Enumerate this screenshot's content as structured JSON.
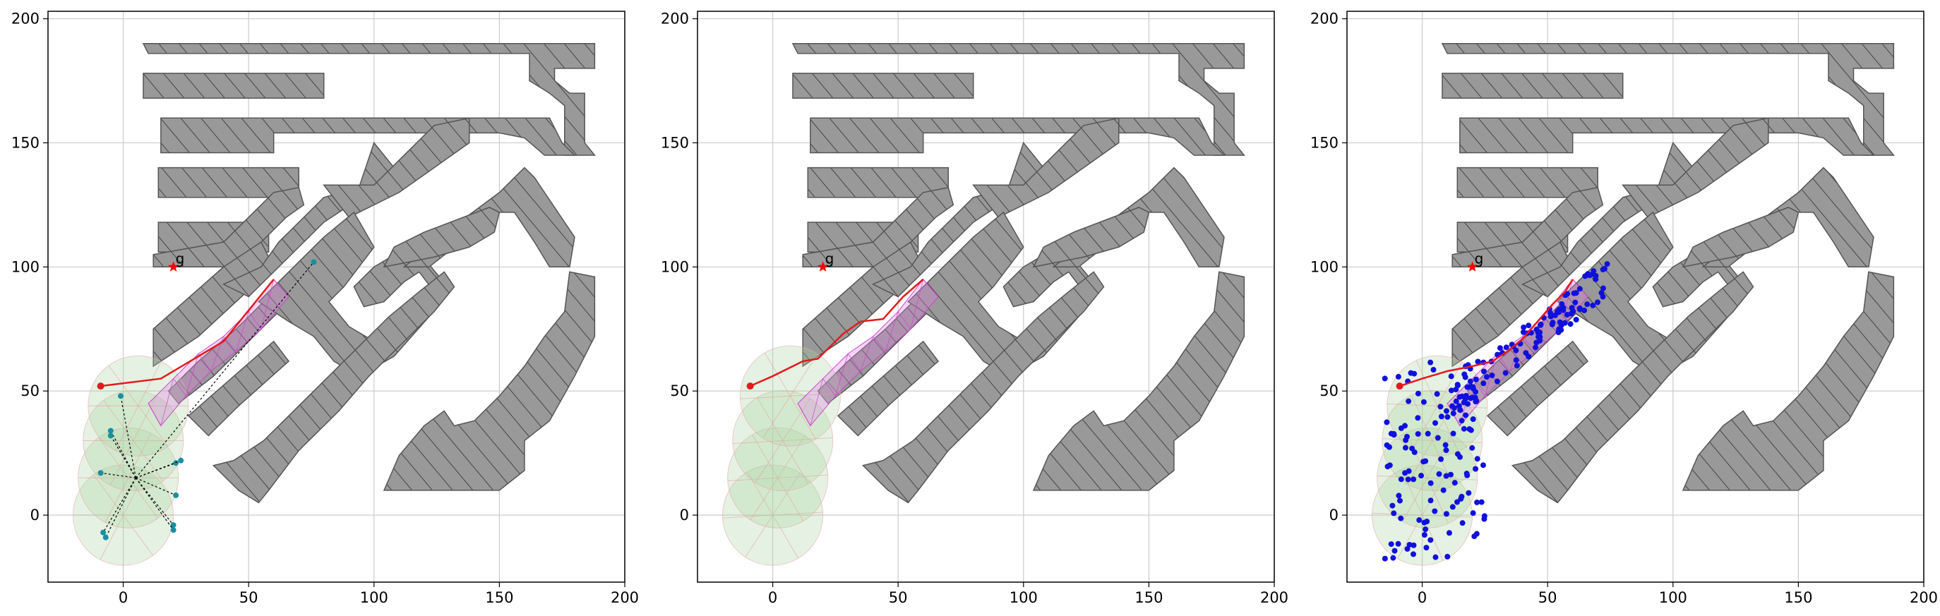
{
  "chart_data": [
    {
      "type": "scatter",
      "panel": "left",
      "xlim": [
        -30,
        200
      ],
      "ylim": [
        -27,
        203
      ],
      "xticks": [
        "0",
        "50",
        "100",
        "150",
        "200"
      ],
      "yticks": [
        "0",
        "50",
        "100",
        "150",
        "200"
      ],
      "grid": true,
      "goal": {
        "label": "g",
        "x": 20,
        "y": 100
      },
      "start": {
        "x": -9,
        "y": 52
      },
      "path": [
        [
          -9,
          52
        ],
        [
          15,
          55
        ],
        [
          40,
          70
        ],
        [
          60,
          95
        ]
      ],
      "waypoint_samples": [
        [
          -1,
          48
        ],
        [
          -5,
          34
        ],
        [
          -5,
          32
        ],
        [
          -9,
          17
        ],
        [
          21,
          21
        ],
        [
          23,
          22
        ],
        [
          21,
          8
        ],
        [
          20,
          -4
        ],
        [
          20,
          -6
        ],
        [
          -8,
          -7
        ],
        [
          -7,
          -9
        ],
        [
          76,
          102
        ]
      ],
      "circle_centers": [
        [
          0,
          0
        ],
        [
          2,
          15
        ],
        [
          4,
          30
        ],
        [
          6,
          44
        ]
      ],
      "circle_radius": 20
    },
    {
      "type": "scatter",
      "panel": "middle",
      "xlim": [
        -30,
        200
      ],
      "ylim": [
        -27,
        203
      ],
      "xticks": [
        "0",
        "50",
        "100",
        "150",
        "200"
      ],
      "yticks": [
        "0",
        "50",
        "100",
        "150",
        "200"
      ],
      "grid": true,
      "goal": {
        "label": "g",
        "x": 20,
        "y": 100
      },
      "start": {
        "x": -9,
        "y": 52
      },
      "path": [
        [
          -9,
          52
        ],
        [
          0,
          56
        ],
        [
          12,
          62
        ],
        [
          18,
          63
        ],
        [
          23,
          68
        ],
        [
          28,
          73
        ],
        [
          35,
          78
        ],
        [
          44,
          79
        ],
        [
          52,
          88
        ],
        [
          60,
          95
        ]
      ],
      "circle_centers": [
        [
          0,
          0
        ],
        [
          2,
          15
        ],
        [
          4,
          30
        ],
        [
          7,
          48
        ]
      ],
      "circle_radius": 20
    },
    {
      "type": "scatter",
      "panel": "right",
      "xlim": [
        -30,
        200
      ],
      "ylim": [
        -27,
        203
      ],
      "xticks": [
        "0",
        "50",
        "100",
        "150",
        "200"
      ],
      "yticks": [
        "0",
        "50",
        "100",
        "150",
        "200"
      ],
      "grid": true,
      "goal": {
        "label": "g",
        "x": 20,
        "y": 100
      },
      "start": {
        "x": -9,
        "y": 52
      },
      "path": [
        [
          -9,
          52
        ],
        [
          0,
          55
        ],
        [
          10,
          58
        ],
        [
          20,
          60
        ],
        [
          28,
          62
        ],
        [
          34,
          66
        ],
        [
          40,
          71
        ],
        [
          46,
          78
        ],
        [
          52,
          85
        ],
        [
          57,
          90
        ],
        [
          60,
          95
        ]
      ],
      "circle_centers": [
        [
          0,
          0
        ],
        [
          2,
          15
        ],
        [
          4,
          30
        ],
        [
          6,
          44
        ]
      ],
      "circle_radius": 20
    }
  ],
  "obstacles": [
    [
      [
        8,
        190
      ],
      [
        188,
        190
      ],
      [
        188,
        180
      ],
      [
        172,
        180
      ],
      [
        172,
        175
      ],
      [
        178,
        170
      ],
      [
        184,
        170
      ],
      [
        184,
        150
      ],
      [
        188,
        145
      ],
      [
        188,
        145
      ],
      [
        176,
        145
      ],
      [
        176,
        165
      ],
      [
        170,
        170
      ],
      [
        162,
        175
      ],
      [
        162,
        186
      ],
      [
        10,
        186
      ],
      [
        8,
        190
      ]
    ],
    [
      [
        8,
        178
      ],
      [
        80,
        178
      ],
      [
        80,
        168
      ],
      [
        8,
        168
      ]
    ],
    [
      [
        15,
        160
      ],
      [
        170,
        160
      ],
      [
        175,
        150
      ],
      [
        180,
        145
      ],
      [
        168,
        145
      ],
      [
        160,
        152
      ],
      [
        150,
        154
      ],
      [
        60,
        154
      ],
      [
        60,
        146
      ],
      [
        15,
        146
      ],
      [
        15,
        160
      ]
    ],
    [
      [
        14,
        140
      ],
      [
        70,
        140
      ],
      [
        70,
        128
      ],
      [
        14,
        128
      ]
    ],
    [
      [
        14,
        118
      ],
      [
        58,
        118
      ],
      [
        58,
        106
      ],
      [
        14,
        106
      ]
    ],
    [
      [
        12,
        100
      ],
      [
        45,
        100
      ],
      [
        55,
        110
      ],
      [
        65,
        120
      ],
      [
        72,
        125
      ],
      [
        70,
        132
      ],
      [
        60,
        130
      ],
      [
        50,
        120
      ],
      [
        40,
        110
      ],
      [
        12,
        105
      ]
    ],
    [
      [
        12,
        75
      ],
      [
        40,
        100
      ],
      [
        55,
        110
      ],
      [
        60,
        100
      ],
      [
        30,
        72
      ],
      [
        12,
        60
      ]
    ],
    [
      [
        40,
        93
      ],
      [
        55,
        100
      ],
      [
        62,
        110
      ],
      [
        70,
        118
      ],
      [
        80,
        128
      ],
      [
        94,
        132
      ],
      [
        100,
        150
      ],
      [
        108,
        140
      ],
      [
        92,
        126
      ],
      [
        80,
        118
      ],
      [
        66,
        104
      ],
      [
        50,
        88
      ]
    ],
    [
      [
        18,
        50
      ],
      [
        30,
        62
      ],
      [
        45,
        75
      ],
      [
        58,
        88
      ],
      [
        62,
        82
      ],
      [
        48,
        68
      ],
      [
        36,
        56
      ],
      [
        22,
        45
      ]
    ],
    [
      [
        80,
        133
      ],
      [
        100,
        133
      ],
      [
        124,
        157
      ],
      [
        138,
        160
      ],
      [
        138,
        150
      ],
      [
        124,
        140
      ],
      [
        110,
        130
      ],
      [
        90,
        120
      ]
    ],
    [
      [
        26,
        40
      ],
      [
        60,
        70
      ],
      [
        66,
        62
      ],
      [
        46,
        44
      ],
      [
        34,
        32
      ]
    ],
    [
      [
        54,
        86
      ],
      [
        80,
        112
      ],
      [
        92,
        122
      ],
      [
        100,
        108
      ],
      [
        88,
        92
      ],
      [
        82,
        86
      ],
      [
        90,
        76
      ],
      [
        100,
        70
      ],
      [
        110,
        74
      ],
      [
        124,
        90
      ],
      [
        118,
        98
      ],
      [
        112,
        94
      ],
      [
        104,
        86
      ],
      [
        96,
        84
      ],
      [
        92,
        92
      ],
      [
        100,
        100
      ],
      [
        110,
        106
      ],
      [
        118,
        106
      ],
      [
        126,
        96
      ],
      [
        122,
        80
      ],
      [
        108,
        64
      ],
      [
        94,
        56
      ],
      [
        84,
        62
      ],
      [
        76,
        72
      ],
      [
        66,
        78
      ]
    ],
    [
      [
        36,
        20
      ],
      [
        46,
        10
      ],
      [
        54,
        5
      ],
      [
        58,
        10
      ],
      [
        70,
        26
      ],
      [
        86,
        42
      ],
      [
        98,
        56
      ],
      [
        110,
        68
      ],
      [
        124,
        82
      ],
      [
        132,
        92
      ],
      [
        128,
        98
      ],
      [
        118,
        90
      ],
      [
        106,
        80
      ],
      [
        92,
        66
      ],
      [
        80,
        54
      ],
      [
        66,
        40
      ],
      [
        56,
        30
      ],
      [
        44,
        22
      ]
    ],
    [
      [
        104,
        10
      ],
      [
        150,
        10
      ],
      [
        160,
        18
      ],
      [
        160,
        30
      ],
      [
        170,
        38
      ],
      [
        180,
        56
      ],
      [
        188,
        72
      ],
      [
        188,
        96
      ],
      [
        178,
        98
      ],
      [
        176,
        82
      ],
      [
        168,
        72
      ],
      [
        160,
        60
      ],
      [
        150,
        48
      ],
      [
        140,
        38
      ],
      [
        132,
        36
      ],
      [
        128,
        42
      ],
      [
        120,
        36
      ],
      [
        110,
        24
      ]
    ],
    [
      [
        112,
        100
      ],
      [
        134,
        118
      ],
      [
        150,
        130
      ],
      [
        160,
        140
      ],
      [
        164,
        136
      ],
      [
        180,
        112
      ],
      [
        178,
        100
      ],
      [
        170,
        100
      ],
      [
        164,
        110
      ],
      [
        156,
        122
      ],
      [
        148,
        122
      ],
      [
        140,
        114
      ],
      [
        132,
        108
      ],
      [
        122,
        100
      ]
    ],
    [
      [
        104,
        100
      ],
      [
        108,
        108
      ],
      [
        120,
        114
      ],
      [
        146,
        124
      ],
      [
        150,
        122
      ],
      [
        148,
        114
      ],
      [
        138,
        108
      ],
      [
        124,
        104
      ]
    ]
  ],
  "colors": {
    "obstacle_fill": "#999999",
    "obstacle_edge": "#555555",
    "path": "#e41a1c",
    "goal": "#ff0000",
    "circle_fill": "#a8d5a2",
    "triangulation": "#cc44cc",
    "tree_nodes": "#1010dd",
    "grid": "#cccccc"
  }
}
